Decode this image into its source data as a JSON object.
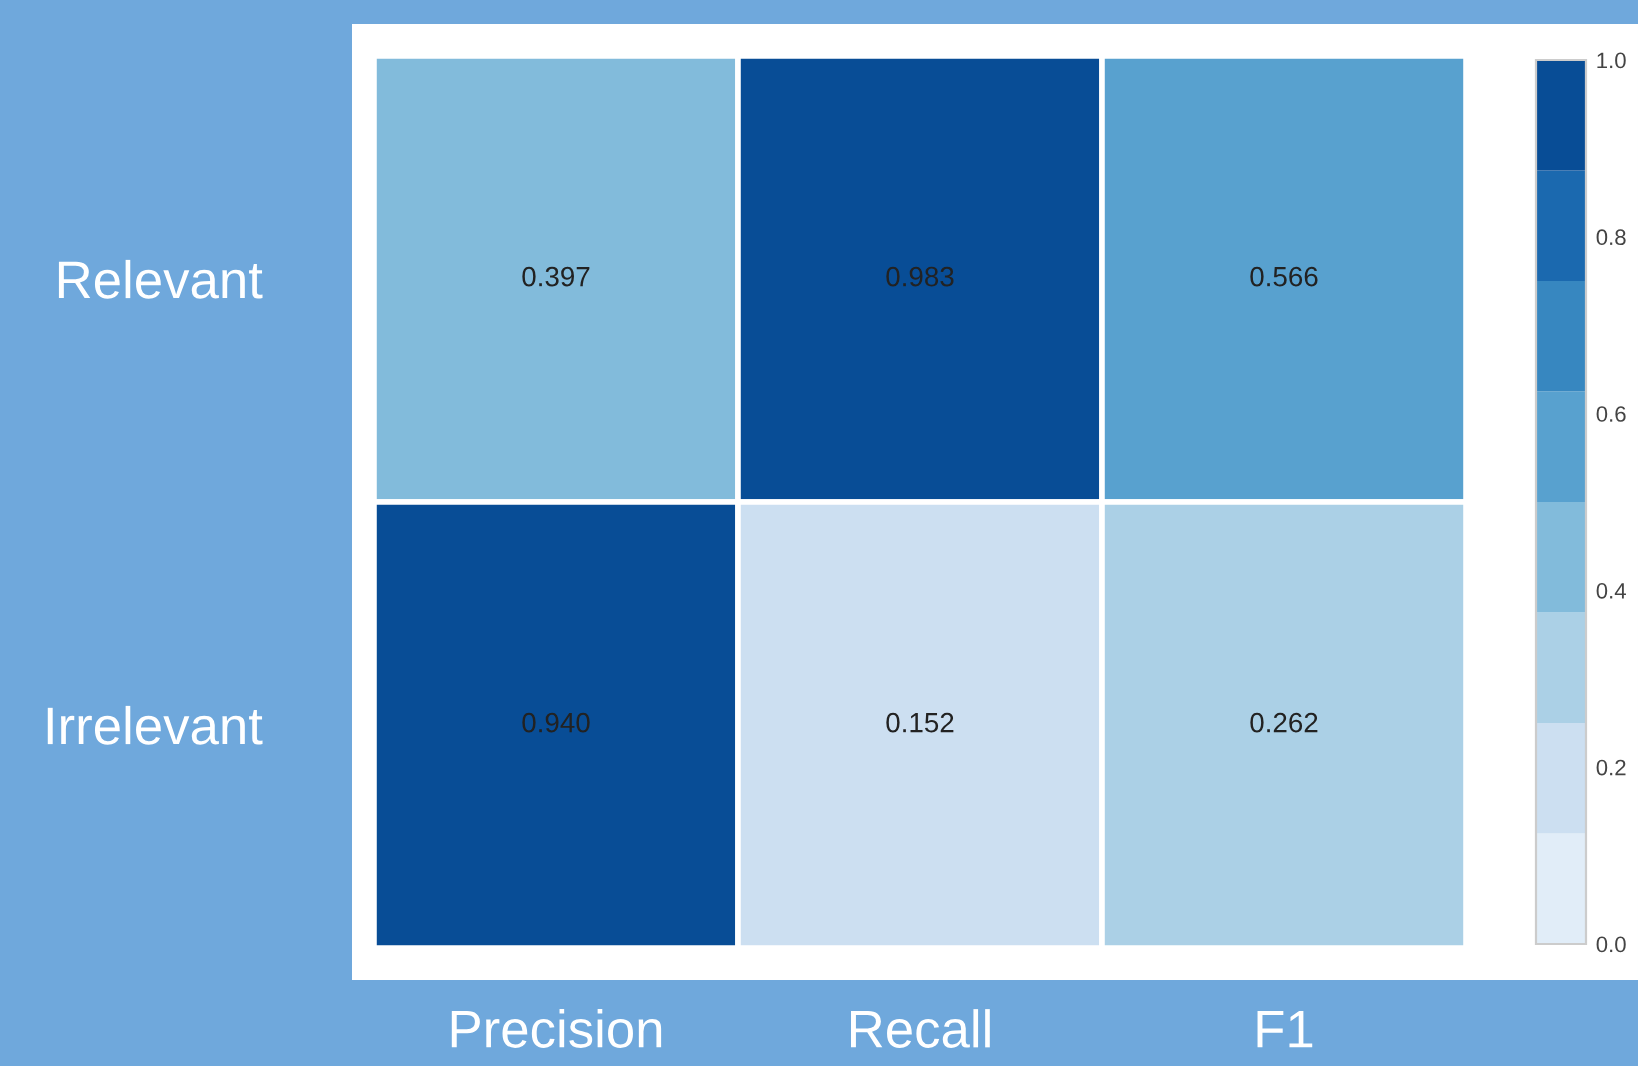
{
  "chart_data": {
    "type": "heatmap",
    "categories": [
      "Precision",
      "Recall",
      "F1"
    ],
    "y_categories": [
      "Relevant",
      "Irrelevant"
    ],
    "cells": [
      [
        0.397,
        0.983,
        0.566
      ],
      [
        0.94,
        0.152,
        0.262
      ]
    ],
    "cell_labels": [
      [
        "0.397",
        "0.983",
        "0.566"
      ],
      [
        "0.940",
        "0.152",
        "0.262"
      ]
    ],
    "clim": [
      0.0,
      1.0
    ],
    "cticks": [
      {
        "value": 0.0,
        "label": "0.0"
      },
      {
        "value": 0.2,
        "label": "0.2"
      },
      {
        "value": 0.4,
        "label": "0.4"
      },
      {
        "value": 0.6,
        "label": "0.6"
      },
      {
        "value": 0.8,
        "label": "0.8"
      },
      {
        "value": 1.0,
        "label": "1.0"
      }
    ]
  }
}
